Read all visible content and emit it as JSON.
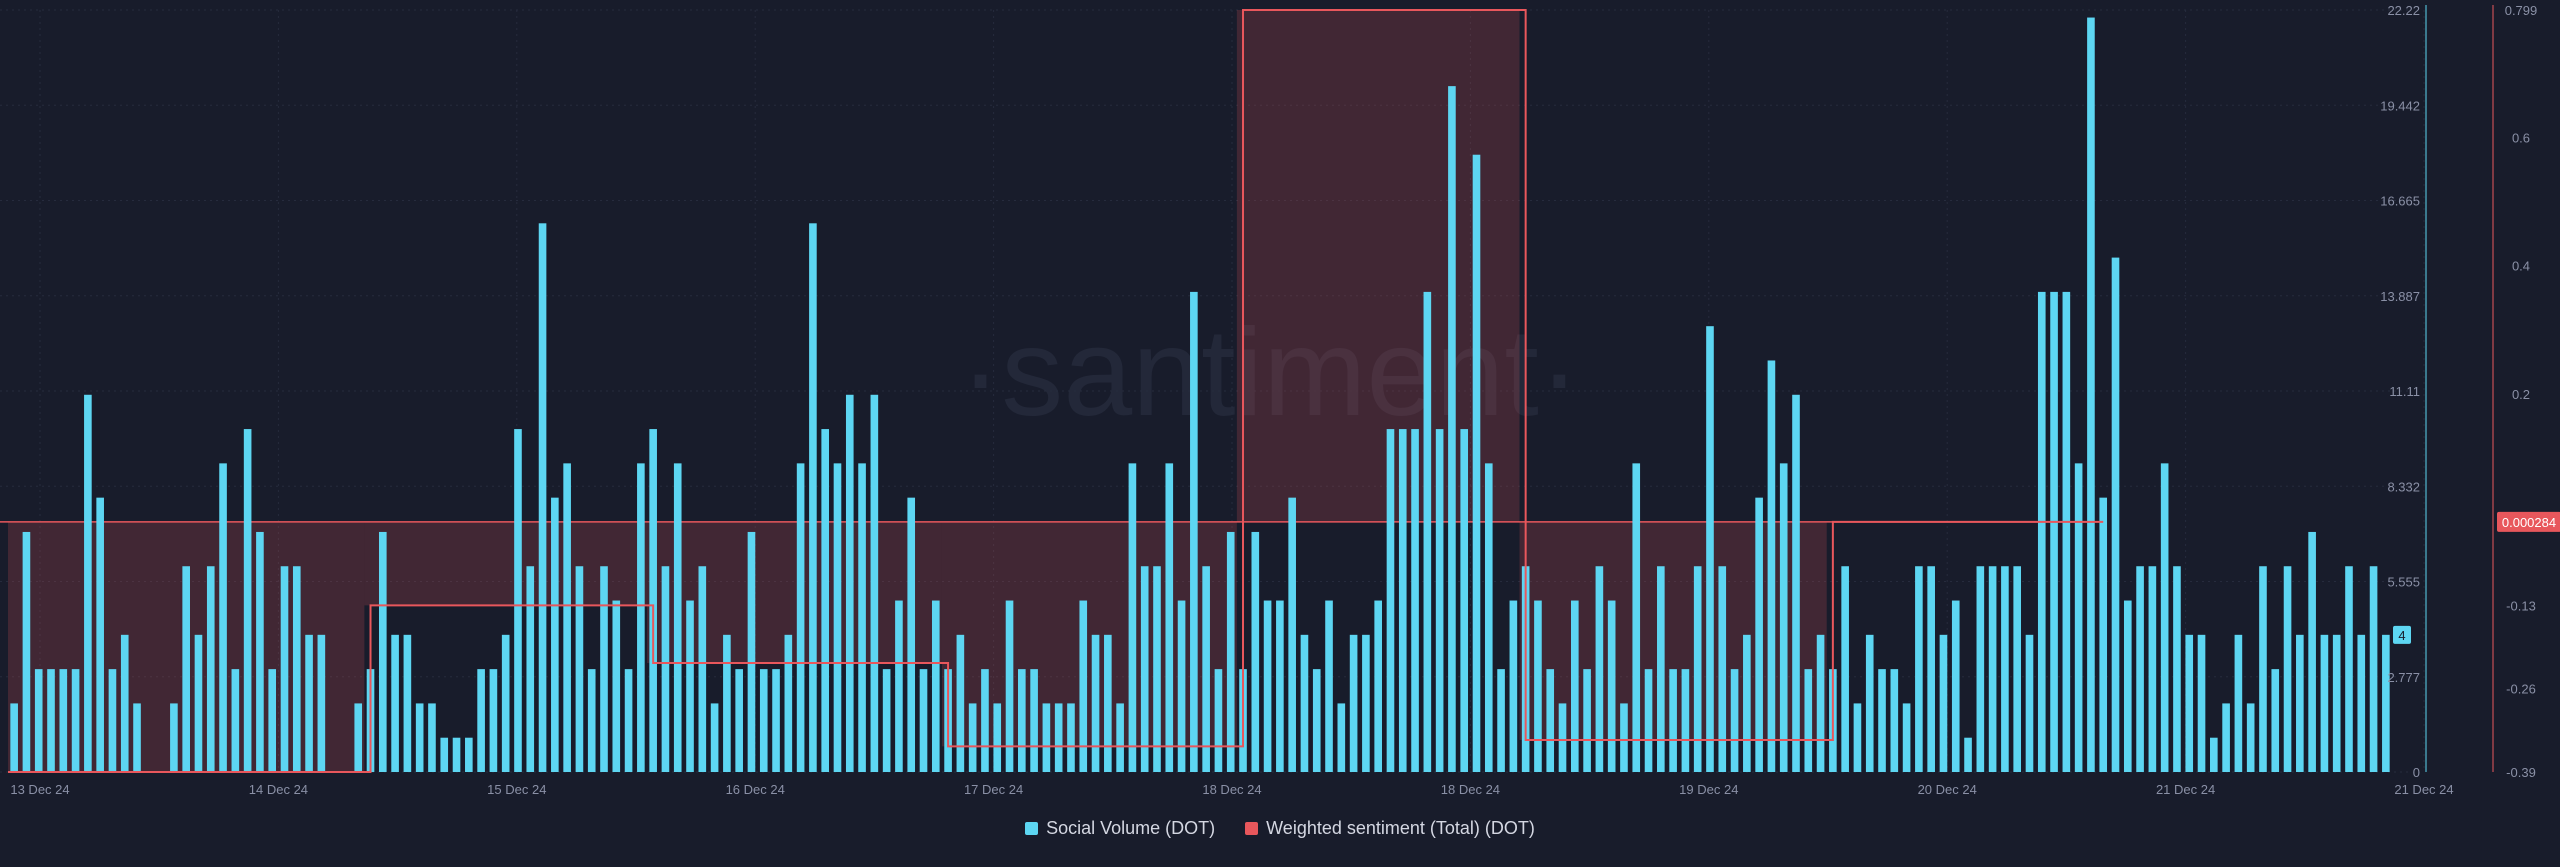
{
  "watermark": "·santiment·",
  "legend": [
    {
      "label": "Social Volume (DOT)",
      "color": "#5dd6f2"
    },
    {
      "label": "Weighted sentiment (Total) (DOT)",
      "color": "#e8575c"
    }
  ],
  "chart_data": {
    "type": "bar",
    "x_tick_labels": [
      "13 Dec 24",
      "14 Dec 24",
      "15 Dec 24",
      "16 Dec 24",
      "17 Dec 24",
      "18 Dec 24",
      "18 Dec 24",
      "19 Dec 24",
      "20 Dec 24",
      "21 Dec 24",
      "21 Dec 24"
    ],
    "left_axis": {
      "ticks": [
        "0",
        "2.777",
        "5.555",
        "8.332",
        "11.11",
        "13.887",
        "16.665",
        "19.442",
        "22.22"
      ],
      "range": [
        0,
        22.22
      ]
    },
    "right_axis": {
      "ticks": [
        "-0.39",
        "-0.26",
        "-0.13",
        "0.2",
        "0.4",
        "0.6",
        "0.799"
      ],
      "range": [
        -0.39,
        0.799
      ]
    },
    "current_values": {
      "social_volume": "4",
      "weighted_sentiment": "0.000284"
    },
    "grid": true,
    "series": [
      {
        "name": "Social Volume (DOT)",
        "axis": "left",
        "color": "#5dd6f2",
        "values": [
          2,
          7,
          3,
          3,
          3,
          3,
          11,
          8,
          3,
          4,
          2,
          0,
          0,
          2,
          6,
          4,
          6,
          9,
          3,
          10,
          7,
          3,
          6,
          6,
          4,
          4,
          0,
          0,
          2,
          3,
          7,
          4,
          4,
          2,
          2,
          1,
          1,
          1,
          3,
          3,
          4,
          10,
          6,
          16,
          8,
          9,
          6,
          3,
          6,
          5,
          3,
          9,
          10,
          6,
          9,
          5,
          6,
          2,
          4,
          3,
          7,
          3,
          3,
          4,
          9,
          16,
          10,
          9,
          11,
          9,
          11,
          3,
          5,
          8,
          3,
          5,
          3,
          4,
          2,
          3,
          2,
          5,
          3,
          3,
          2,
          2,
          2,
          5,
          4,
          4,
          2,
          9,
          6,
          6,
          9,
          5,
          14,
          6,
          3,
          7,
          3,
          7,
          5,
          5,
          8,
          4,
          3,
          5,
          2,
          4,
          4,
          5,
          10,
          10,
          10,
          14,
          10,
          20,
          10,
          18,
          9,
          3,
          5,
          6,
          5,
          3,
          2,
          5,
          3,
          6,
          5,
          2,
          9,
          3,
          6,
          3,
          3,
          6,
          13,
          6,
          3,
          4,
          8,
          12,
          9,
          11,
          3,
          4,
          3,
          6,
          2,
          4,
          3,
          3,
          2,
          6,
          6,
          4,
          5,
          1,
          6,
          6,
          6,
          6,
          4,
          14,
          14,
          14,
          9,
          22,
          8,
          15,
          5,
          6,
          6,
          9,
          6,
          4,
          4,
          1,
          2,
          4,
          2,
          6,
          3,
          6,
          4,
          7,
          4,
          4,
          6,
          4,
          6,
          4
        ]
      },
      {
        "name": "Weighted sentiment (Total) (DOT)",
        "axis": "right",
        "color": "#e8575c",
        "steps": [
          {
            "from": 0,
            "to": 29,
            "value": -0.39
          },
          {
            "from": 29,
            "to": 52,
            "value": -0.13
          },
          {
            "from": 52,
            "to": 76,
            "value": -0.22
          },
          {
            "from": 76,
            "to": 100,
            "value": -0.35
          },
          {
            "from": 100,
            "to": 123,
            "value": 0.799
          },
          {
            "from": 123,
            "to": 148,
            "value": -0.34
          },
          {
            "from": 148,
            "to": 170,
            "value": 0.000284
          }
        ],
        "shade_line_value": 0.000284
      }
    ]
  }
}
